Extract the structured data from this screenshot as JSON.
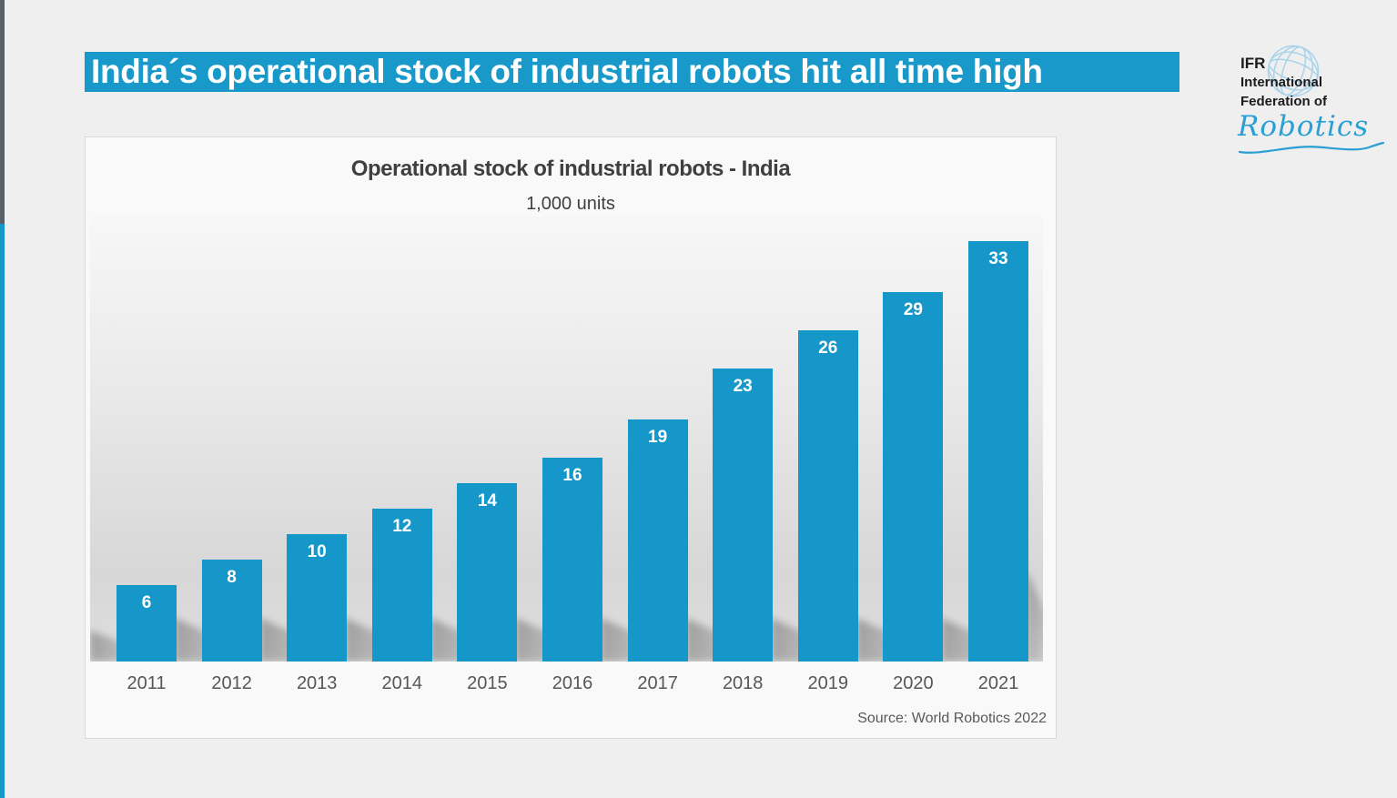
{
  "banner": {
    "title": "India´s operational stock of industrial robots hit all time high"
  },
  "logo": {
    "abbr": "IFR",
    "name_line1": "International",
    "name_line2": "Federation of",
    "script": "Robotics"
  },
  "chart_data": {
    "type": "bar",
    "title": "Operational stock of industrial robots - India",
    "subtitle": "1,000 units",
    "categories": [
      "2011",
      "2012",
      "2013",
      "2014",
      "2015",
      "2016",
      "2017",
      "2018",
      "2019",
      "2020",
      "2021"
    ],
    "values": [
      6,
      8,
      10,
      12,
      14,
      16,
      19,
      23,
      26,
      29,
      33
    ],
    "ylabel": "1,000 units",
    "ylim": [
      0,
      35
    ],
    "grid": false,
    "legend": "none",
    "source": "Source: World Robotics 2022"
  },
  "colors": {
    "bar_blue": "#1598c9",
    "banner_blue": "#1899c9",
    "strip_dark": "#5a5f69",
    "strip_blue": "#1598c9",
    "script_blue": "#2a9fd3",
    "globe_blue": "#a9d3e9"
  }
}
